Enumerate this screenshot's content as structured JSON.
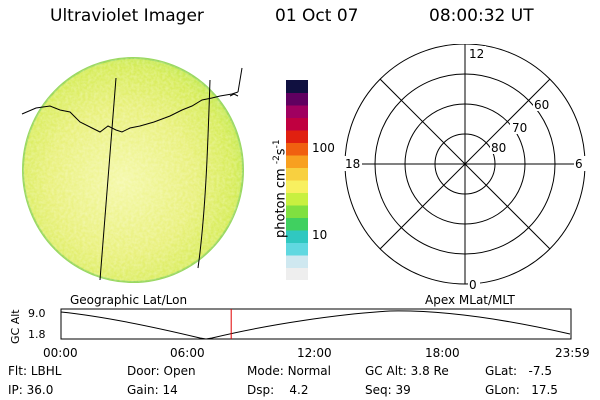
{
  "header": {
    "title": "Ultraviolet Imager",
    "date": "01 Oct 07",
    "time": "08:00:32 UT"
  },
  "colorbar": {
    "label": "photon cm",
    "label_sup1": "-2",
    "label_mid": "s",
    "label_sup2": "-1",
    "ticks": [
      "100",
      "10"
    ],
    "colors": [
      "#eeeeee",
      "#cfe8f0",
      "#60d8e0",
      "#30c8c0",
      "#40d060",
      "#80e040",
      "#c8f040",
      "#f8f060",
      "#f8d040",
      "#f8a020",
      "#f06010",
      "#e02010",
      "#c00040",
      "#a00060",
      "#600060",
      "#101040"
    ]
  },
  "polar": {
    "mlt_labels": {
      "top": "12",
      "left": "18",
      "right": "6",
      "bottom": "0"
    },
    "lat_labels": [
      "60",
      "70",
      "80"
    ]
  },
  "timeline": {
    "left_title": "Geographic Lat/Lon",
    "right_title": "Apex MLat/MLT",
    "ylabel": "GC Alt",
    "y_ticks": [
      "9.0",
      "1.8"
    ],
    "x_ticks": [
      "00:00",
      "06:00",
      "12:00",
      "18:00",
      "23:59"
    ],
    "marker_time_hours": 8.009,
    "marker_color": "#e00000"
  },
  "info": {
    "flt_label": "Flt:",
    "flt_value": "LBHL",
    "ip_label": "IP:",
    "ip_value": "36.0",
    "door_label": "Door:",
    "door_value": "Open",
    "gain_label": "Gain:",
    "gain_value": "14",
    "mode_label": "Mode:",
    "mode_value": "Normal",
    "dsp_label": "Dsp:",
    "dsp_value": "4.2",
    "gcalt_label": "GC Alt:",
    "gcalt_value": "3.8 Re",
    "seq_label": "Seq:",
    "seq_value": "39",
    "glat_label": "GLat:",
    "glat_value": "-7.5",
    "glon_label": "GLon:",
    "glon_value": "17.5"
  }
}
